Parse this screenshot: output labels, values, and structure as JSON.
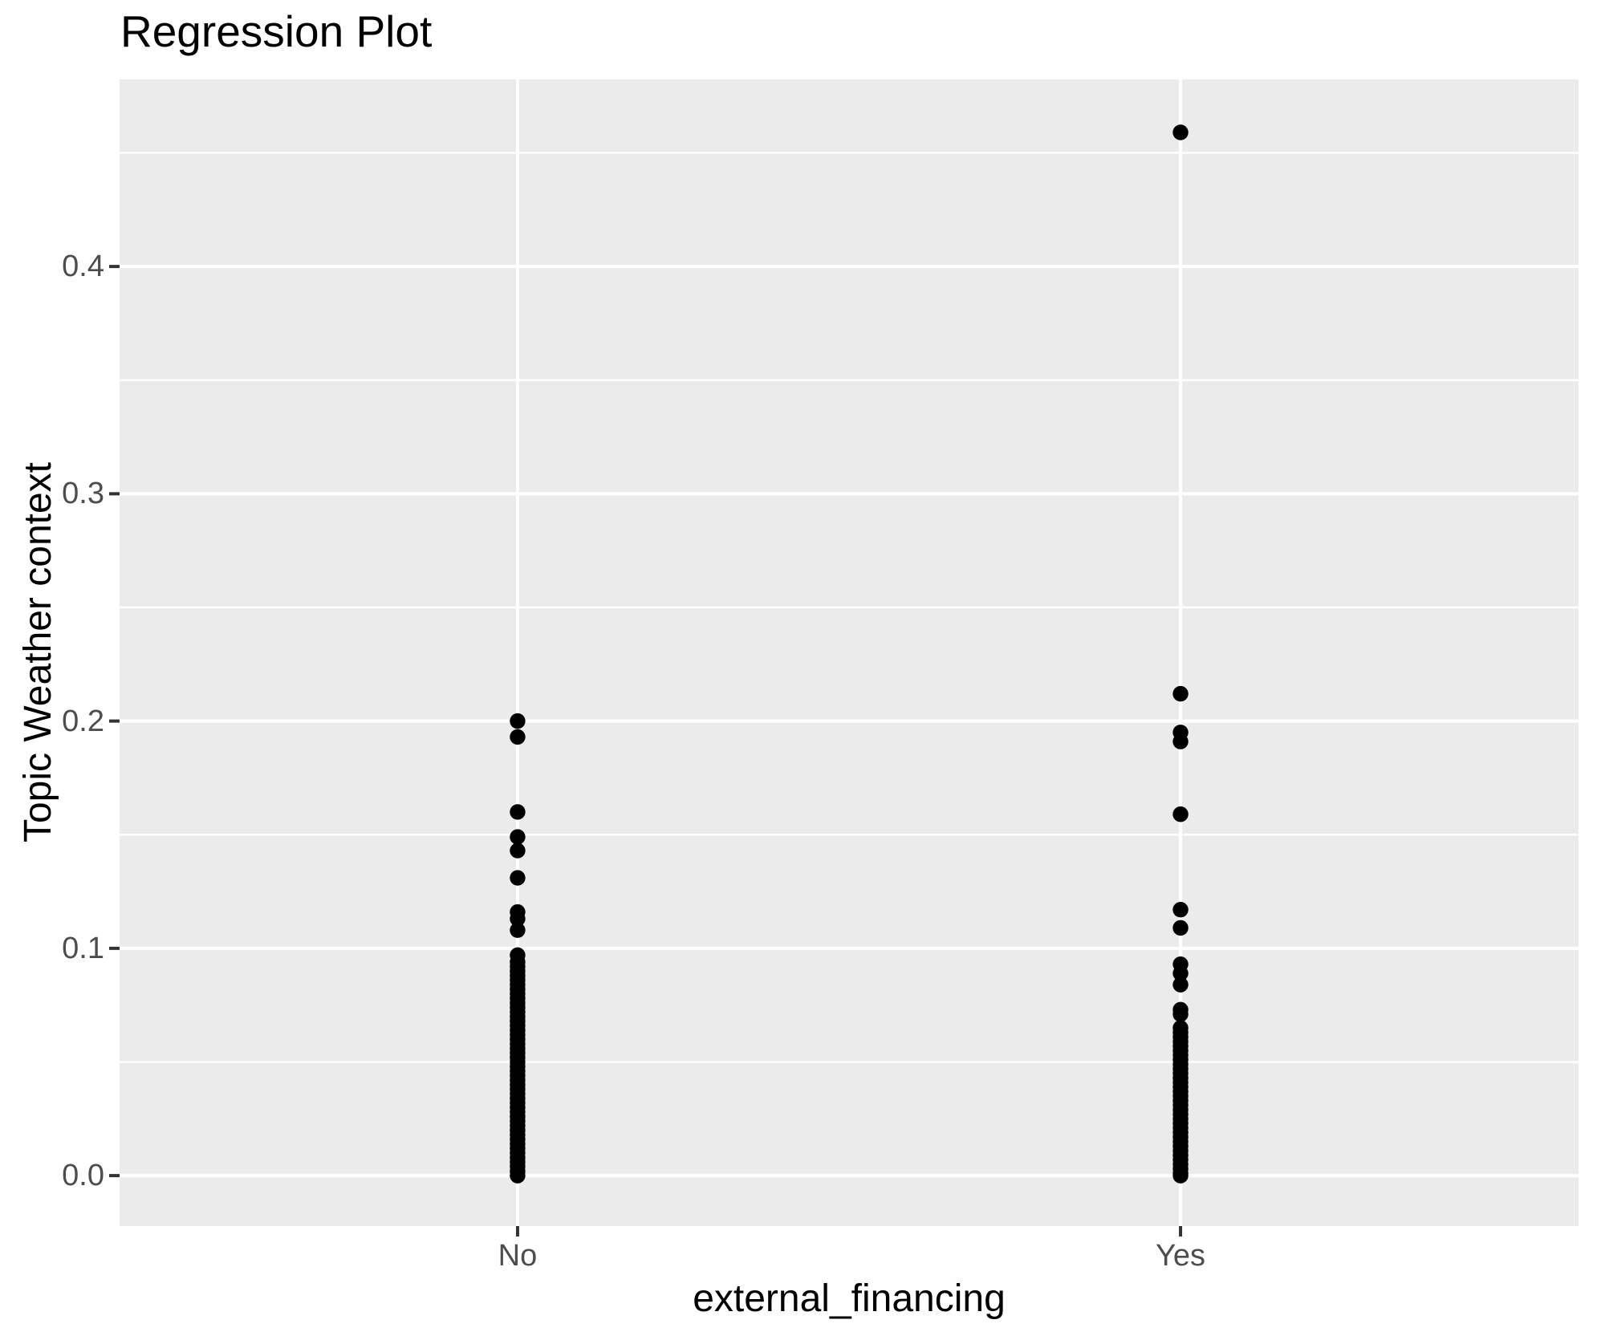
{
  "page": {
    "title": "Regression Plot"
  },
  "colors": {
    "background": "#FFFFFF",
    "panel_background": "#EBEBEB",
    "gridline": "#FFFFFF",
    "tick_label_text": "#4D4D4D",
    "axis_title_text": "#000000",
    "plot_title_text": "#000000",
    "tick_mark": "#333333",
    "point": "#000000"
  },
  "chart_data": {
    "type": "scatter",
    "title": "Regression Plot",
    "xlabel": "external_financing",
    "ylabel": "Topic Weather context",
    "categories": [
      "No",
      "Yes"
    ],
    "x_positions": [
      0.2728,
      0.7272
    ],
    "ylim": [
      -0.0222,
      0.4823
    ],
    "yticks": [
      0.0,
      0.1,
      0.2,
      0.3,
      0.4
    ],
    "ytick_labels": [
      "0.0",
      "0.1",
      "0.2",
      "0.3",
      "0.4"
    ],
    "yminor": [
      0.05,
      0.15,
      0.25,
      0.35,
      0.45
    ],
    "grid": "horizontal major+minor, vertical major at categories",
    "legend": "none",
    "point_radius": 9.7,
    "series": [
      {
        "name": "No",
        "values": [
          0.2,
          0.193,
          0.16,
          0.149,
          0.143,
          0.131,
          0.116,
          0.113,
          0.108,
          0.097,
          0.094,
          0.092,
          0.09,
          0.088,
          0.086,
          0.084,
          0.082,
          0.08,
          0.078,
          0.076,
          0.074,
          0.072,
          0.07,
          0.068,
          0.066,
          0.064,
          0.062,
          0.06,
          0.058,
          0.056,
          0.054,
          0.052,
          0.05,
          0.048,
          0.046,
          0.044,
          0.042,
          0.04,
          0.038,
          0.036,
          0.034,
          0.032,
          0.03,
          0.028,
          0.026,
          0.024,
          0.022,
          0.02,
          0.018,
          0.016,
          0.014,
          0.012,
          0.01,
          0.008,
          0.006,
          0.004,
          0.002,
          0.0
        ]
      },
      {
        "name": "Yes",
        "values": [
          0.459,
          0.212,
          0.195,
          0.191,
          0.159,
          0.117,
          0.109,
          0.093,
          0.089,
          0.084,
          0.073,
          0.071,
          0.065,
          0.063,
          0.061,
          0.059,
          0.057,
          0.055,
          0.053,
          0.051,
          0.049,
          0.047,
          0.045,
          0.043,
          0.041,
          0.039,
          0.037,
          0.035,
          0.033,
          0.031,
          0.029,
          0.027,
          0.025,
          0.023,
          0.021,
          0.019,
          0.017,
          0.015,
          0.013,
          0.011,
          0.009,
          0.007,
          0.005,
          0.003,
          0.001,
          0.0
        ]
      }
    ]
  }
}
